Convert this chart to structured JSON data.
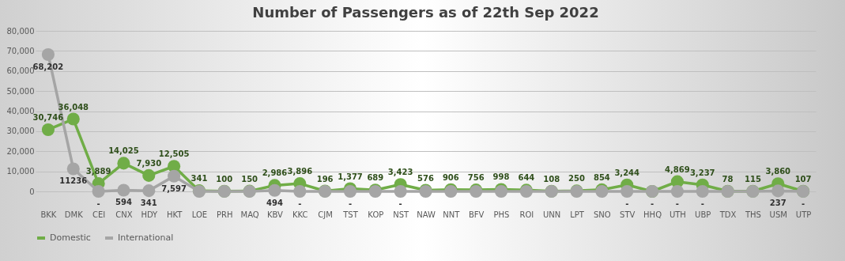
{
  "chart_data": {
    "type": "line",
    "title": "Number of Passengers as of 22th Sep 2022",
    "categories": [
      "BKK",
      "DMK",
      "CEI",
      "CNX",
      "HDY",
      "HKT",
      "LOE",
      "PRH",
      "MAQ",
      "KBV",
      "KKC",
      "CJM",
      "TST",
      "KOP",
      "NST",
      "NAW",
      "NNT",
      "BFV",
      "PHS",
      "ROI",
      "UNN",
      "LPT",
      "SNO",
      "STV",
      "HHQ",
      "UTH",
      "UBP",
      "TDX",
      "THS",
      "USM",
      "UTP"
    ],
    "series": [
      {
        "name": "Domestic",
        "color": "#70ad47",
        "values": [
          30746,
          36048,
          3889,
          14025,
          7930,
          12505,
          341,
          100,
          150,
          2986,
          3896,
          196,
          1377,
          689,
          3423,
          576,
          906,
          756,
          998,
          644,
          108,
          250,
          854,
          3244,
          0,
          4869,
          3237,
          78,
          115,
          3860,
          107
        ],
        "value_labels": [
          "30,746",
          "36,048",
          "3,889",
          "14,025",
          "7,930",
          "12,505",
          "341",
          "100",
          "150",
          "2,986",
          "3,896",
          "196",
          "1,377",
          "689",
          "3,423",
          "576",
          "906",
          "756",
          "998",
          "644",
          "108",
          "250",
          "854",
          "3,244",
          null,
          "4,869",
          "3,237",
          "78",
          "115",
          "3,860",
          "107"
        ]
      },
      {
        "name": "International",
        "color": "#a5a5a5",
        "values": [
          68202,
          11236,
          0,
          594,
          341,
          7597,
          0,
          0,
          0,
          494,
          0,
          0,
          0,
          0,
          0,
          0,
          0,
          0,
          0,
          0,
          0,
          0,
          0,
          0,
          0,
          0,
          0,
          0,
          0,
          237,
          0
        ],
        "value_labels": [
          "68,202",
          "11236",
          "-",
          "594",
          "341",
          "7,597",
          null,
          null,
          null,
          "494",
          "-",
          null,
          "-",
          null,
          "-",
          null,
          null,
          null,
          null,
          null,
          null,
          null,
          null,
          "-",
          "-",
          "-",
          "-",
          null,
          null,
          "237",
          "-"
        ]
      }
    ],
    "ylim": [
      0,
      80000
    ],
    "yticks": [
      0,
      {
        "value": 10000,
        "label": "10,000"
      },
      {
        "value": 20000,
        "label": "20,000"
      },
      {
        "value": 30000,
        "label": "30,000"
      },
      {
        "value": 40000,
        "label": "40,000"
      },
      {
        "value": 50000,
        "label": "50,000"
      },
      {
        "value": 60000,
        "label": "60,000"
      },
      {
        "value": 70000,
        "label": "70,000"
      },
      {
        "value": 80000,
        "label": "80,000"
      }
    ],
    "grid": "y",
    "legend": "bottom",
    "marker": "circle"
  }
}
